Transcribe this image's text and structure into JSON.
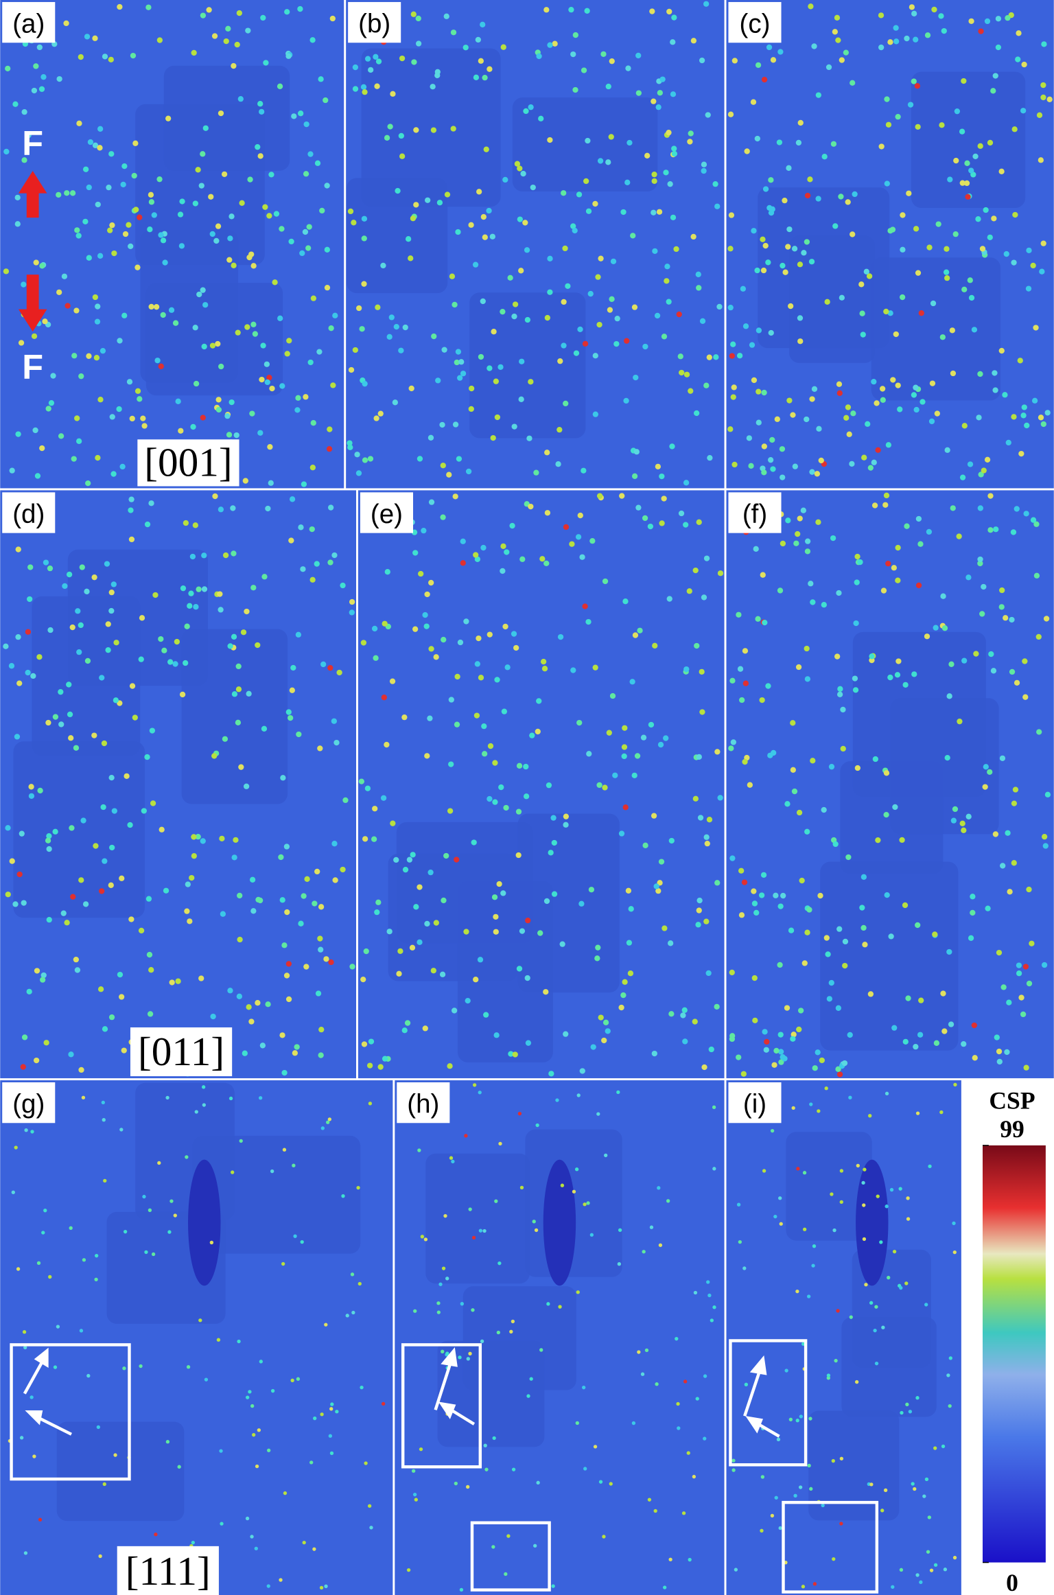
{
  "panels": [
    {
      "label": "(a)"
    },
    {
      "label": "(b)"
    },
    {
      "label": "(c)"
    },
    {
      "label": "(d)"
    },
    {
      "label": "(e)"
    },
    {
      "label": "(f)"
    },
    {
      "label": "(g)"
    },
    {
      "label": "(h)"
    },
    {
      "label": "(i)"
    }
  ],
  "orientations": [
    "[001]",
    "[011]",
    "[111]"
  ],
  "load_labels": [
    "F",
    "F"
  ],
  "colorbar": {
    "title": "CSP",
    "lim": [
      0,
      99
    ],
    "ticks": [
      99,
      0
    ]
  }
}
